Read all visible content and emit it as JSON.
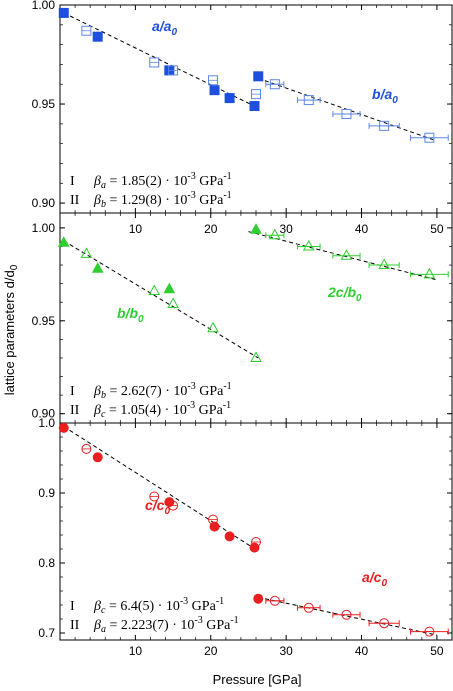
{
  "colors": {
    "blue": "#1f4fe0",
    "blue_light": "#5a86e8",
    "green": "#2fcf2f",
    "red": "#e82020"
  },
  "chart_data": [
    {
      "type": "scatter",
      "panel": "top",
      "xlim": [
        0,
        52
      ],
      "ylim": [
        0.895,
        1.0
      ],
      "yticks": [
        "0.90",
        "0.95",
        "1.00"
      ],
      "xticks": [],
      "grid": false,
      "series": [
        {
          "name": "a/a0",
          "label_sub": "0",
          "label_main": "a/a",
          "color": "blue",
          "marker": "square",
          "fill": true,
          "x": [
            0.5,
            5,
            14.5,
            20.5,
            22.5,
            25.8,
            26.3
          ],
          "y": [
            0.996,
            0.984,
            0.967,
            0.957,
            0.953,
            0.949,
            0.964
          ]
        },
        {
          "name": "a/a0 open",
          "color": "blue",
          "marker": "square",
          "fill": false,
          "x": [
            3.5,
            12.5,
            15,
            20.3,
            26,
            28.5,
            33,
            38,
            43,
            49
          ],
          "y": [
            0.987,
            0.971,
            0.967,
            0.962,
            0.955,
            0.96,
            0.952,
            0.945,
            0.939,
            0.933
          ],
          "xerr": [
            0,
            0,
            0,
            0,
            0,
            1.2,
            1.5,
            1.8,
            2,
            2.5
          ]
        },
        {
          "name": "b/a0",
          "label_sub": "0",
          "label_main": "b/a",
          "color": "blue",
          "marker": "none",
          "fill": false,
          "x": [],
          "y": []
        }
      ],
      "fits": [
        {
          "x": [
            0.5,
            26.3
          ],
          "y": [
            0.996,
            0.948
          ]
        },
        {
          "x": [
            26.3,
            49.5
          ],
          "y": [
            0.963,
            0.932
          ]
        }
      ],
      "annotations": [
        {
          "roman": "I",
          "symbol": "β",
          "sub": "a",
          "value": " = 1.85(2) · 10",
          "exp": "-3",
          "unit": " GPa",
          "unitexp": "-1"
        },
        {
          "roman": "II",
          "symbol": "β",
          "sub": "b",
          "value": " = 1.29(8) · 10",
          "exp": "-3",
          "unit": " GPa",
          "unitexp": "-1"
        }
      ]
    },
    {
      "type": "scatter",
      "panel": "middle",
      "xlim": [
        0,
        52
      ],
      "ylim": [
        0.895,
        1.008
      ],
      "yticks": [
        "0.90",
        "0.95",
        "1.00"
      ],
      "xticks": [
        "10",
        "20",
        "30",
        "40",
        "50"
      ],
      "grid": false,
      "series": [
        {
          "name": "b/b0",
          "label_main": "b/b",
          "label_sub": "0",
          "color": "green",
          "marker": "triangle",
          "fill": true,
          "x": [
            0.5,
            5,
            14.5,
            26
          ],
          "y": [
            0.992,
            0.978,
            0.967,
            0.999
          ]
        },
        {
          "name": "b/b0 open",
          "color": "green",
          "marker": "triangle",
          "fill": false,
          "x": [
            3.5,
            12.5,
            15,
            20.3,
            26,
            28.5,
            33,
            38,
            43,
            49
          ],
          "y": [
            0.986,
            0.966,
            0.959,
            0.946,
            0.93,
            0.996,
            0.99,
            0.985,
            0.98,
            0.975
          ],
          "xerr": [
            0,
            0,
            0,
            0,
            0,
            1.2,
            1.5,
            1.8,
            2,
            2.5
          ]
        },
        {
          "name": "2c/b0",
          "label_main": "2c/b",
          "label_sub": "0",
          "color": "green",
          "marker": "none",
          "fill": false,
          "x": [],
          "y": []
        }
      ],
      "fits": [
        {
          "x": [
            0.5,
            26.3
          ],
          "y": [
            0.993,
            0.93
          ]
        },
        {
          "x": [
            25,
            50
          ],
          "y": [
            0.998,
            0.972
          ]
        }
      ],
      "annotations": [
        {
          "roman": "I",
          "symbol": "β",
          "sub": "b",
          "value": " = 2.62(7) · 10",
          "exp": "-3",
          "unit": " GPa",
          "unitexp": "-1"
        },
        {
          "roman": "II",
          "symbol": "β",
          "sub": "c",
          "value": " = 1.05(4) · 10",
          "exp": "-3",
          "unit": " GPa",
          "unitexp": "-1"
        }
      ]
    },
    {
      "type": "scatter",
      "panel": "bottom",
      "xlim": [
        0,
        52
      ],
      "ylim": [
        0.69,
        1.0
      ],
      "yticks": [
        "0.7",
        "0.8",
        "0.9",
        "1.0"
      ],
      "xticks": [
        "10",
        "20",
        "30",
        "40",
        "50"
      ],
      "xlabel": "Pressure [GPa]",
      "grid": false,
      "series": [
        {
          "name": "c/c0",
          "label_main": "c/c",
          "label_sub": "0",
          "color": "red",
          "marker": "circle",
          "fill": true,
          "x": [
            0.5,
            5,
            14.5,
            20.5,
            22.5,
            25.8,
            26.3
          ],
          "y": [
            0.993,
            0.951,
            0.887,
            0.852,
            0.838,
            0.822,
            0.749
          ]
        },
        {
          "name": "c/c0 open",
          "color": "red",
          "marker": "circle",
          "fill": false,
          "x": [
            3.5,
            12.5,
            15,
            20.3,
            26,
            28.5,
            33,
            38,
            43,
            49
          ],
          "y": [
            0.963,
            0.895,
            0.882,
            0.862,
            0.83,
            0.746,
            0.736,
            0.726,
            0.714,
            0.702
          ],
          "xerr": [
            0,
            0,
            0,
            0,
            0,
            1.2,
            1.5,
            1.8,
            2,
            2.5
          ]
        },
        {
          "name": "a/c0",
          "label_main": "a/c",
          "label_sub": "0",
          "color": "red",
          "marker": "none",
          "fill": false,
          "x": [],
          "y": []
        }
      ],
      "fits": [
        {
          "x": [
            0.5,
            26.3
          ],
          "y": [
            0.995,
            0.817
          ]
        },
        {
          "x": [
            26.3,
            50
          ],
          "y": [
            0.751,
            0.697
          ]
        }
      ],
      "annotations": [
        {
          "roman": "I",
          "symbol": "β",
          "sub": "c",
          "value": " = 6.4(5) · 10",
          "exp": "-3",
          "unit": " GPa",
          "unitexp": "-1"
        },
        {
          "roman": "II",
          "symbol": "β",
          "sub": "a",
          "value": " = 2.223(7) · 10",
          "exp": "-3",
          "unit": " GPa",
          "unitexp": "-1"
        }
      ]
    }
  ],
  "ylabel_main": "lattice parameters d/d",
  "ylabel_sub": "0"
}
